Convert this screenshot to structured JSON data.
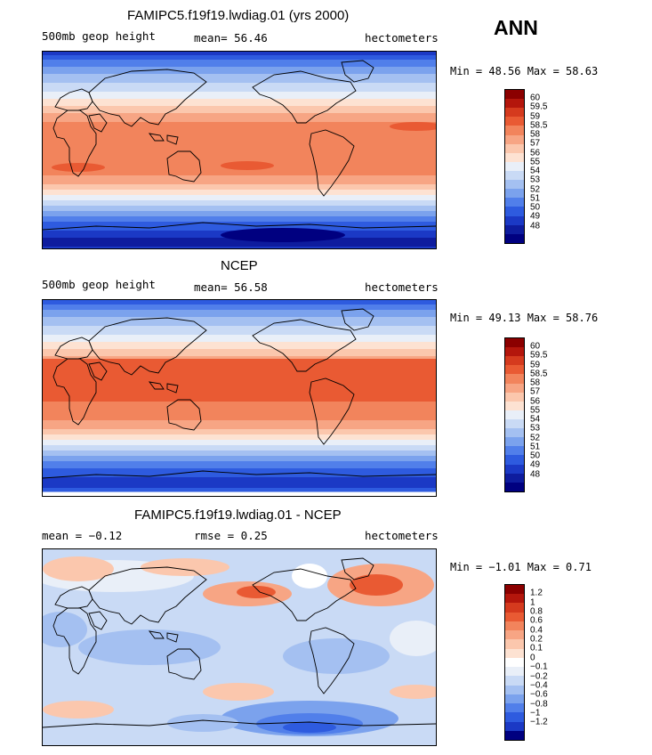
{
  "season": "ANN",
  "panels": [
    {
      "title": "FAMIPC5.f19f19.lwdiag.01 (yrs 2000)",
      "left": "500mb geop height",
      "mid": "mean=  56.46",
      "right": "hectometers",
      "minmax": "Min =  48.56 Max =  58.63",
      "type": "field",
      "colorbar": {
        "colors": [
          "#8b0000",
          "#b4160c",
          "#d53a1e",
          "#e95a33",
          "#f2845c",
          "#f7a584",
          "#fbc7ad",
          "#fde2d2",
          "#e9eff8",
          "#c9daf5",
          "#a4c0f1",
          "#7ba2ed",
          "#517fea",
          "#2e5bdf",
          "#1b39c5",
          "#0e1c9e",
          "#000080"
        ],
        "labels": [
          "60",
          "59.5",
          "59",
          "58.5",
          "58",
          "57",
          "56",
          "55",
          "54",
          "53",
          "52",
          "51",
          "50",
          "49",
          "48"
        ]
      }
    },
    {
      "title": "NCEP",
      "left": "500mb geop height",
      "mid": "mean=  56.58",
      "right": "hectometers",
      "minmax": "Min =  49.13 Max =  58.76",
      "type": "field",
      "colorbar": {
        "colors": [
          "#8b0000",
          "#b4160c",
          "#d53a1e",
          "#e95a33",
          "#f2845c",
          "#f7a584",
          "#fbc7ad",
          "#fde2d2",
          "#e9eff8",
          "#c9daf5",
          "#a4c0f1",
          "#7ba2ed",
          "#517fea",
          "#2e5bdf",
          "#1b39c5",
          "#0e1c9e",
          "#000080"
        ],
        "labels": [
          "60",
          "59.5",
          "59",
          "58.5",
          "58",
          "57",
          "56",
          "55",
          "54",
          "53",
          "52",
          "51",
          "50",
          "49",
          "48"
        ]
      }
    },
    {
      "title": "FAMIPC5.f19f19.lwdiag.01 - NCEP",
      "left": "mean =  −0.12",
      "mid": "rmse =   0.25",
      "right": "hectometers",
      "minmax": "Min =  −1.01 Max =   0.71",
      "type": "diff",
      "colorbar": {
        "colors": [
          "#8b0000",
          "#b4160c",
          "#d53a1e",
          "#e95a33",
          "#f2845c",
          "#f7a584",
          "#fbc7ad",
          "#fde2d2",
          "#ffffff",
          "#e9eff8",
          "#c9daf5",
          "#a4c0f1",
          "#7ba2ed",
          "#517fea",
          "#2e5bdf",
          "#1b39c5",
          "#000080"
        ],
        "labels": [
          "1.2",
          "1",
          "0.8",
          "0.6",
          "0.4",
          "0.2",
          "0.1",
          "0",
          "−0.1",
          "−0.2",
          "−0.4",
          "−0.6",
          "−0.8",
          "−1",
          "−1.2"
        ]
      }
    }
  ]
}
